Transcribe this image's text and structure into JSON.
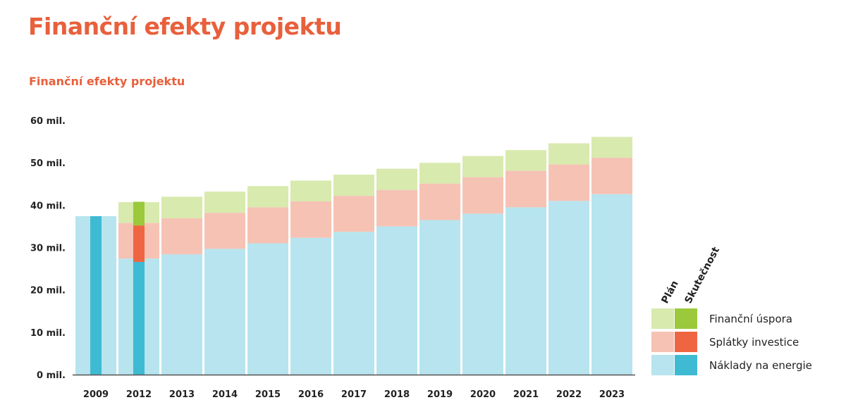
{
  "header": {
    "title": "Finanční efekty projektu"
  },
  "chart_data": {
    "type": "bar",
    "stacked": true,
    "title": "Finanční efekty projektu",
    "xlabel": "",
    "ylabel": "",
    "ylim": [
      0,
      60
    ],
    "yticks": [
      "0 mil.",
      "10 mil.",
      "20 mil.",
      "30 mil.",
      "40 mil.",
      "50 mil.",
      "60 mil."
    ],
    "categories": [
      "2009",
      "2012",
      "2013",
      "2014",
      "2015",
      "2016",
      "2017",
      "2018",
      "2019",
      "2020",
      "2021",
      "2022",
      "2023"
    ],
    "plan": {
      "series": [
        {
          "name": "Náklady na energie",
          "values": [
            37.4,
            27.4,
            28.4,
            29.7,
            31.0,
            32.3,
            33.7,
            35.0,
            36.5,
            38.0,
            39.5,
            41.0,
            42.6
          ]
        },
        {
          "name": "Splátky investice",
          "values": [
            0,
            8.4,
            8.5,
            8.5,
            8.5,
            8.6,
            8.5,
            8.6,
            8.6,
            8.6,
            8.6,
            8.6,
            8.6
          ]
        },
        {
          "name": "Finanční úspora",
          "values": [
            0,
            4.9,
            5.1,
            5.0,
            5.0,
            4.9,
            5.0,
            5.0,
            4.9,
            5.0,
            4.9,
            5.0,
            4.9
          ]
        }
      ]
    },
    "actual": {
      "categories": [
        "2009",
        "2012"
      ],
      "series": [
        {
          "name": "Náklady na energie",
          "values": [
            37.4,
            26.6
          ]
        },
        {
          "name": "Splátky investice",
          "values": [
            0,
            8.6
          ]
        },
        {
          "name": "Finanční úspora",
          "values": [
            0,
            5.6
          ]
        }
      ]
    },
    "legend": {
      "position": "right",
      "column_headers": [
        "Plán",
        "Skutečnost"
      ],
      "entries": [
        "Finanční úspora",
        "Splátky investice",
        "Náklady na energie"
      ]
    },
    "colors": {
      "plan": [
        "#b7e4ee",
        "#f6c2b4",
        "#d8eaae"
      ],
      "actual": [
        "#3fbad3",
        "#ef6542",
        "#9bc93b"
      ],
      "axis": "#555555",
      "title": "#e8603c"
    },
    "grid": false
  }
}
